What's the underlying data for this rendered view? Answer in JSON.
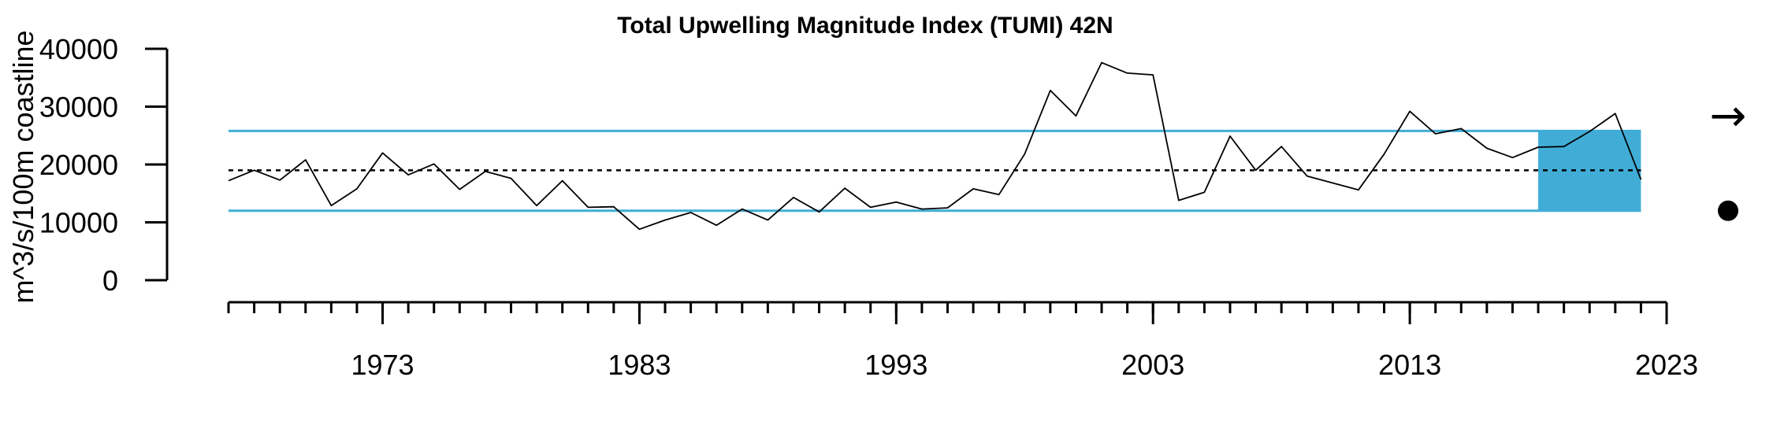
{
  "chart_data": {
    "type": "line",
    "title": "Total Upwelling Magnitude Index (TUMI) 42N",
    "xlabel": "",
    "ylabel": "m^3/s/100m coastline",
    "xlim": [
      1967,
      2023
    ],
    "ylim": [
      0,
      40000
    ],
    "yticks": [
      "0",
      "10000",
      "20000",
      "30000",
      "40000"
    ],
    "xtick_labels": [
      "1973",
      "1983",
      "1993",
      "2003",
      "2013",
      "2023"
    ],
    "mean": 19000,
    "upper_sd": 25800,
    "lower_sd": 12000,
    "highlight_x": [
      2018,
      2022
    ],
    "trend_symbol": "→",
    "mean_symbol": "●",
    "colors": {
      "line": "#000000",
      "sd": "#41add7",
      "highlight": "#41add7"
    },
    "series": [
      {
        "x": [
          1967,
          1968,
          1969,
          1970,
          1971,
          1972,
          1973,
          1974,
          1975,
          1976,
          1977,
          1978,
          1979,
          1980,
          1981,
          1982,
          1983,
          1984,
          1985,
          1986,
          1987,
          1988,
          1989,
          1990,
          1991,
          1992,
          1993,
          1994,
          1995,
          1996,
          1997,
          1998,
          1999,
          2000,
          2001,
          2002,
          2003,
          2004,
          2005,
          2006,
          2007,
          2008,
          2009,
          2010,
          2011,
          2012,
          2013,
          2014,
          2015,
          2016,
          2017,
          2018,
          2019,
          2020,
          2021,
          2022
        ],
        "values": [
          17200,
          19000,
          17300,
          20800,
          12900,
          15800,
          22000,
          18200,
          20100,
          15700,
          18800,
          17600,
          12900,
          17200,
          12600,
          12700,
          8800,
          10400,
          11700,
          9500,
          12300,
          10400,
          14300,
          11800,
          15900,
          12600,
          13500,
          12300,
          12500,
          15800,
          14800,
          21800,
          32800,
          28400,
          37600,
          35800,
          35500,
          13800,
          15200,
          24900,
          19000,
          23100,
          18000,
          16800,
          15600,
          21800,
          29200,
          25300,
          26200,
          22800,
          21200,
          23000,
          23100,
          25700,
          28800,
          17400
        ]
      }
    ]
  }
}
